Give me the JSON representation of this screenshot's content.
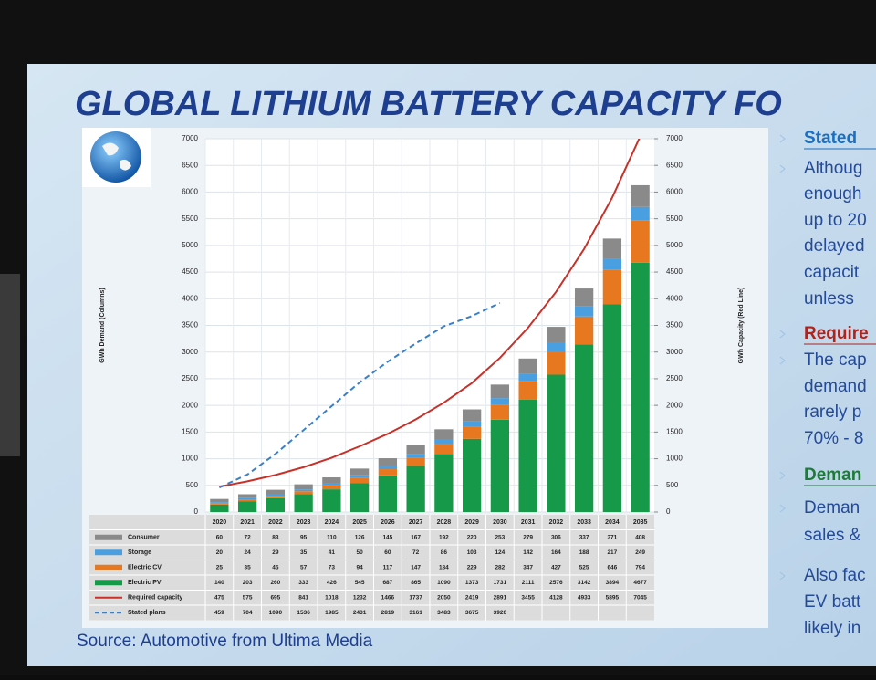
{
  "slide": {
    "title": "GLOBAL LITHIUM BATTERY CAPACITY FO",
    "source": "Source: Automotive from Ultima Media",
    "notes": [
      {
        "text": "Stated",
        "kind": "heading",
        "color": "#1a6fc0"
      },
      {
        "text": "Althoug",
        "kind": "bullet"
      },
      {
        "text": "enough",
        "kind": "line"
      },
      {
        "text": "up to 20",
        "kind": "line"
      },
      {
        "text": "delayed",
        "kind": "line"
      },
      {
        "text": "capacit",
        "kind": "line"
      },
      {
        "text": "unless",
        "kind": "line"
      },
      {
        "text": "Require",
        "kind": "heading",
        "color": "#b0221c"
      },
      {
        "text": "The cap",
        "kind": "bullet"
      },
      {
        "text": "demand",
        "kind": "line"
      },
      {
        "text": "rarely p",
        "kind": "line"
      },
      {
        "text": "70% - 8",
        "kind": "line"
      },
      {
        "text": "Deman",
        "kind": "heading",
        "color": "#1f7a3a"
      },
      {
        "text": "Deman",
        "kind": "bullet"
      },
      {
        "text": "sales &",
        "kind": "line"
      },
      {
        "text": "Also fac",
        "kind": "bullet"
      },
      {
        "text": "EV batt",
        "kind": "line"
      },
      {
        "text": "likely in",
        "kind": "line"
      }
    ]
  },
  "chart_data": {
    "type": "bar",
    "stacked": true,
    "grid": true,
    "y_label": "GWh Demand (Columns)",
    "y2_label": "GWh Capacity (Red Line)",
    "categories": [
      "2020",
      "2021",
      "2022",
      "2023",
      "2024",
      "2025",
      "2026",
      "2027",
      "2028",
      "2029",
      "2030",
      "2031",
      "2032",
      "2033",
      "2034",
      "2035"
    ],
    "ylim": [
      0,
      7000
    ],
    "yticks": [
      0,
      500,
      1000,
      1500,
      2000,
      2500,
      3000,
      3500,
      4000,
      4500,
      5000,
      5500,
      6000,
      6500,
      7000
    ],
    "y2lim": [
      0,
      7000
    ],
    "y2ticks": [
      0,
      500,
      1000,
      1500,
      2000,
      2500,
      3000,
      3500,
      4000,
      4500,
      5000,
      5500,
      6000,
      6500,
      7000
    ],
    "series": [
      {
        "name": "Consumer",
        "color": "#8a8a8a",
        "type": "bar",
        "values": [
          60,
          72,
          83,
          95,
          110,
          126,
          145,
          167,
          192,
          220,
          253,
          279,
          306,
          337,
          371,
          408
        ]
      },
      {
        "name": "Storage",
        "color": "#4a9fe0",
        "type": "bar",
        "values": [
          20,
          24,
          29,
          35,
          41,
          50,
          60,
          72,
          86,
          103,
          124,
          142,
          164,
          188,
          217,
          249
        ]
      },
      {
        "name": "Electric CV",
        "color": "#e8781f",
        "type": "bar",
        "values": [
          25,
          35,
          45,
          57,
          73,
          94,
          117,
          147,
          184,
          229,
          282,
          347,
          427,
          525,
          646,
          794
        ]
      },
      {
        "name": "Electric PV",
        "color": "#17994a",
        "type": "bar",
        "values": [
          140,
          203,
          260,
          333,
          426,
          545,
          687,
          865,
          1090,
          1373,
          1731,
          2111,
          2576,
          3142,
          3894,
          4677
        ]
      },
      {
        "name": "Required capacity",
        "color": "#c8312a",
        "type": "line",
        "axis": "y2",
        "values": [
          475,
          575,
          695,
          841,
          1018,
          1232,
          1466,
          1737,
          2050,
          2419,
          2891,
          3455,
          4128,
          4933,
          5895,
          7045
        ]
      },
      {
        "name": "Stated plans",
        "color": "#3a80c8",
        "type": "line",
        "dashed": true,
        "axis": "y2",
        "values": [
          459,
          704,
          1090,
          1536,
          1985,
          2431,
          2819,
          3161,
          3483,
          3675,
          3920,
          null,
          null,
          null,
          null,
          null
        ]
      }
    ]
  }
}
